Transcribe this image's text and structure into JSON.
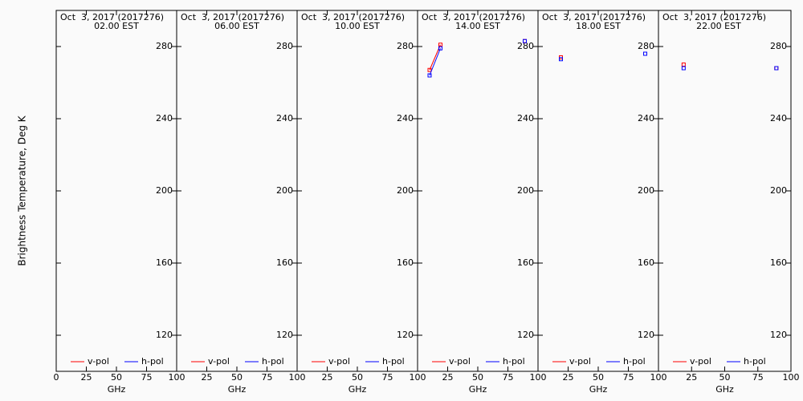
{
  "chart_data": [
    {
      "type": "line",
      "title": "Oct  3, 2017 (2017276)",
      "subtitle": "02.00 EST",
      "ylabel": "Brightness Temperature, Deg K",
      "xlabel": "GHz",
      "x": [
        10,
        19,
        37,
        89
      ],
      "series": [
        {
          "name": "v-pol",
          "color": "#ff0000",
          "values": [
            null,
            null,
            null,
            null
          ]
        },
        {
          "name": "h-pol",
          "color": "#0000ff",
          "values": [
            null,
            null,
            null,
            null
          ]
        }
      ],
      "xlim": [
        0,
        100
      ],
      "xticks": [
        0,
        25,
        50,
        75,
        100
      ],
      "ylim": [
        100,
        300
      ],
      "yticks": [
        120,
        160,
        200,
        240,
        280
      ]
    },
    {
      "type": "line",
      "title": "Oct  3, 2017 (2017276)",
      "subtitle": "06.00 EST",
      "xlabel": "GHz",
      "x": [
        10,
        19,
        37,
        89
      ],
      "series": [
        {
          "name": "v-pol",
          "color": "#ff0000",
          "values": [
            null,
            null,
            null,
            null
          ]
        },
        {
          "name": "h-pol",
          "color": "#0000ff",
          "values": [
            null,
            null,
            null,
            null
          ]
        }
      ],
      "xlim": [
        0,
        100
      ],
      "xticks": [
        25,
        50,
        75,
        100
      ],
      "ylim": [
        100,
        300
      ],
      "yticks": [
        120,
        160,
        200,
        240,
        280
      ]
    },
    {
      "type": "line",
      "title": "Oct  3, 2017 (2017276)",
      "subtitle": "10.00 EST",
      "xlabel": "GHz",
      "x": [
        10,
        19,
        37,
        89
      ],
      "series": [
        {
          "name": "v-pol",
          "color": "#ff0000",
          "values": [
            null,
            null,
            null,
            null
          ]
        },
        {
          "name": "h-pol",
          "color": "#0000ff",
          "values": [
            null,
            null,
            null,
            null
          ]
        }
      ],
      "xlim": [
        0,
        100
      ],
      "xticks": [
        25,
        50,
        75,
        100
      ],
      "ylim": [
        100,
        300
      ],
      "yticks": [
        120,
        160,
        200,
        240,
        280
      ]
    },
    {
      "type": "line",
      "title": "Oct  3, 2017 (2017276)",
      "subtitle": "14.00 EST",
      "xlabel": "GHz",
      "x": [
        10,
        19,
        37,
        89
      ],
      "series": [
        {
          "name": "v-pol",
          "color": "#ff0000",
          "values": [
            267,
            281,
            null,
            283
          ]
        },
        {
          "name": "h-pol",
          "color": "#0000ff",
          "values": [
            264,
            279,
            null,
            283
          ]
        }
      ],
      "xlim": [
        0,
        100
      ],
      "xticks": [
        25,
        50,
        75,
        100
      ],
      "ylim": [
        100,
        300
      ],
      "yticks": [
        120,
        160,
        200,
        240,
        280
      ]
    },
    {
      "type": "line",
      "title": "Oct  3, 2017 (2017276)",
      "subtitle": "18.00 EST",
      "xlabel": "GHz",
      "x": [
        10,
        19,
        37,
        89
      ],
      "series": [
        {
          "name": "v-pol",
          "color": "#ff0000",
          "values": [
            null,
            274,
            null,
            276
          ]
        },
        {
          "name": "h-pol",
          "color": "#0000ff",
          "values": [
            null,
            273,
            null,
            276
          ]
        }
      ],
      "xlim": [
        0,
        100
      ],
      "xticks": [
        25,
        50,
        75,
        100
      ],
      "ylim": [
        100,
        300
      ],
      "yticks": [
        120,
        160,
        200,
        240,
        280
      ]
    },
    {
      "type": "line",
      "title": "Oct  3, 2017 (2017276)",
      "subtitle": "22.00 EST",
      "xlabel": "GHz",
      "x": [
        10,
        19,
        37,
        89
      ],
      "series": [
        {
          "name": "v-pol",
          "color": "#ff0000",
          "values": [
            null,
            270,
            null,
            268
          ]
        },
        {
          "name": "h-pol",
          "color": "#0000ff",
          "values": [
            null,
            268,
            null,
            268
          ]
        }
      ],
      "xlim": [
        0,
        100
      ],
      "xticks": [
        25,
        50,
        75,
        100
      ],
      "ylim": [
        100,
        300
      ],
      "yticks": [
        120,
        160,
        200,
        240,
        280
      ]
    }
  ]
}
